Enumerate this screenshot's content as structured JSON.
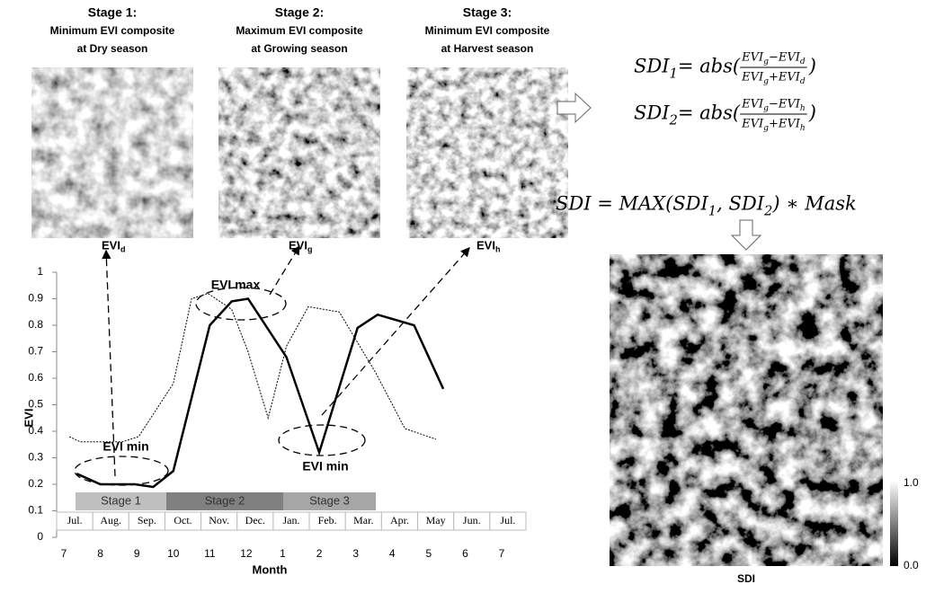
{
  "stages": [
    {
      "lines": [
        "Stage 1:",
        "Minimum EVI composite",
        "at Dry season"
      ],
      "label": {
        "text": "EVI",
        "sub": "d"
      }
    },
    {
      "lines": [
        "Stage 2:",
        "Maximum EVI  composite",
        "at Growing season"
      ],
      "label": {
        "text": "EVI",
        "sub": "g"
      }
    },
    {
      "lines": [
        "Stage 3:",
        "Minimum EVI  composite",
        "at Harvest season"
      ],
      "label": {
        "text": "EVI",
        "sub": "h"
      }
    }
  ],
  "equations": [
    [
      {
        "text": "SDI",
        "sub": "1"
      },
      {
        "text": " = abs("
      },
      {
        "num": [
          {
            "text": "EVI",
            "sub": "g"
          },
          {
            "text": "−EVI",
            "sub": "d"
          }
        ],
        "den": [
          {
            "text": "EVI",
            "sub": "g"
          },
          {
            "text": "+EVI",
            "sub": "d"
          }
        ]
      },
      {
        "text": ")"
      }
    ],
    [
      {
        "text": "SDI",
        "sub": "2"
      },
      {
        "text": " = abs("
      },
      {
        "num": [
          {
            "text": "EVI",
            "sub": "g"
          },
          {
            "text": "−EVI",
            "sub": "h"
          }
        ],
        "den": [
          {
            "text": "EVI",
            "sub": "g"
          },
          {
            "text": "+EVI",
            "sub": "h"
          }
        ]
      },
      {
        "text": ")"
      }
    ],
    [
      {
        "text": "SDI = MAX(SDI",
        "sub": "1"
      },
      {
        "text": ", SDI",
        "sub": "2"
      },
      {
        "text": ") ∗ Mask"
      }
    ]
  ],
  "result": {
    "label": "SDI",
    "colorbar": [
      "1.0",
      "0.0"
    ]
  },
  "chart_data": {
    "type": "line",
    "ylabel": "EVI",
    "xlabel": "Month",
    "xlim": [
      0,
      12
    ],
    "xticks": [
      {
        "value": 0,
        "label": "7"
      },
      {
        "value": 1,
        "label": "8"
      },
      {
        "value": 2,
        "label": "9"
      },
      {
        "value": 3,
        "label": "10"
      },
      {
        "value": 4,
        "label": "11"
      },
      {
        "value": 5,
        "label": "12"
      },
      {
        "value": 6,
        "label": "1"
      },
      {
        "value": 7,
        "label": "2"
      },
      {
        "value": 8,
        "label": "3"
      },
      {
        "value": 9,
        "label": "4"
      },
      {
        "value": 10,
        "label": "5"
      },
      {
        "value": 11,
        "label": "6"
      },
      {
        "value": 12,
        "label": "7"
      }
    ],
    "ylim": [
      0,
      1
    ],
    "yticks": [
      0,
      0.1,
      0.2,
      0.3,
      0.4,
      0.5,
      0.6,
      0.7,
      0.8,
      0.9,
      1
    ],
    "series": [
      {
        "color": "#000000",
        "style": "solid",
        "x": [
          0.35,
          1.0,
          1.95,
          2.45,
          3.0,
          4.0,
          4.6,
          5.05,
          6.1,
          7.0,
          8.05,
          8.6,
          9.6,
          10.4
        ],
        "values": [
          0.24,
          0.2,
          0.2,
          0.19,
          0.25,
          0.8,
          0.89,
          0.9,
          0.68,
          0.32,
          0.79,
          0.84,
          0.8,
          0.56
        ]
      },
      {
        "color": "#000000",
        "style": "dotted",
        "x": [
          0.15,
          0.45,
          1.0,
          1.6,
          2.05,
          3.0,
          3.5,
          3.95,
          4.6,
          5.05,
          5.6,
          6.1,
          6.7,
          7.55,
          8.55,
          9.35,
          10.2
        ],
        "values": [
          0.38,
          0.36,
          0.36,
          0.36,
          0.38,
          0.58,
          0.9,
          0.92,
          0.86,
          0.7,
          0.45,
          0.72,
          0.87,
          0.85,
          0.62,
          0.41,
          0.37
        ]
      }
    ],
    "annotations": [
      "EVI max",
      "EVI min",
      "EVI min"
    ],
    "stages": [
      {
        "name": "Stage 1",
        "color": "#bfbfbf"
      },
      {
        "name": "Stage 2",
        "color": "#808080"
      },
      {
        "name": "Stage 3",
        "color": "#a6a6a6"
      }
    ],
    "months": [
      "Jul.",
      "Aug.",
      "Sep.",
      "Oct.",
      "Nov.",
      "Dec.",
      "Jan.",
      "Feb.",
      "Mar.",
      "Apr.",
      "May",
      "Jun.",
      "Jul."
    ]
  }
}
